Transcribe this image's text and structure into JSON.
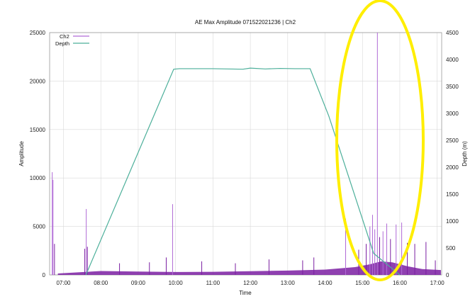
{
  "chart_data": {
    "type": "line",
    "title": "AE Max Amplitude 071522021236 | Ch2",
    "xlabel": "Time",
    "ylabel": "Amplitude",
    "y2label": "Depth (m)",
    "x_ticks": [
      "07:00",
      "08:00",
      "09:00",
      "10:00",
      "11:00",
      "12:00",
      "13:00",
      "14:00",
      "15:00",
      "16:00",
      "17:00"
    ],
    "xlim_hours": [
      6.63,
      17.12
    ],
    "ylim": [
      0,
      25000
    ],
    "y_ticks": [
      "0",
      "5000",
      "10000",
      "15000",
      "20000",
      "25000"
    ],
    "y2lim": [
      0,
      4500
    ],
    "y2_ticks": [
      "0",
      "500",
      "1000",
      "1500",
      "2000",
      "2500",
      "3000",
      "3500",
      "4000",
      "4500"
    ],
    "grid": true,
    "legend": {
      "placement": "top-left",
      "entries": [
        "Ch2",
        "Depth"
      ]
    },
    "colors": {
      "ch2": "#7b1fa2",
      "ch2_light": "#b06ad6",
      "depth": "#4caf9a",
      "highlight": "#ffee00",
      "grid": "#d9d9d9"
    },
    "series": [
      {
        "name": "Depth",
        "axis": "right",
        "x_hours": [
          7.6,
          9.95,
          10.1,
          11.0,
          11.8,
          12.0,
          12.4,
          12.8,
          13.2,
          13.6,
          14.1,
          15.3,
          16.0
        ],
        "y": [
          0,
          3820,
          3830,
          3830,
          3820,
          3840,
          3825,
          3835,
          3830,
          3830,
          2950,
          400,
          0
        ]
      },
      {
        "name": "Ch2",
        "axis": "left",
        "baseline_x_hours": [
          6.85,
          7.55,
          8.0,
          9.0,
          10.0,
          11.0,
          12.0,
          13.0,
          14.0,
          14.8,
          15.2,
          15.5,
          15.8,
          16.2,
          16.6,
          17.1
        ],
        "baseline_y": [
          150,
          300,
          400,
          350,
          300,
          320,
          380,
          450,
          550,
          800,
          1100,
          1400,
          1300,
          900,
          600,
          500
        ],
        "spikes": [
          {
            "t": 6.7,
            "v": 10600
          },
          {
            "t": 6.72,
            "v": 9800
          },
          {
            "t": 6.76,
            "v": 3200
          },
          {
            "t": 7.57,
            "v": 2700
          },
          {
            "t": 7.61,
            "v": 6800
          },
          {
            "t": 7.64,
            "v": 2900
          },
          {
            "t": 8.5,
            "v": 1200
          },
          {
            "t": 9.3,
            "v": 1300
          },
          {
            "t": 9.75,
            "v": 1800
          },
          {
            "t": 9.92,
            "v": 7300
          },
          {
            "t": 10.7,
            "v": 1400
          },
          {
            "t": 11.6,
            "v": 1200
          },
          {
            "t": 12.5,
            "v": 1600
          },
          {
            "t": 13.4,
            "v": 1500
          },
          {
            "t": 13.7,
            "v": 1800
          },
          {
            "t": 14.55,
            "v": 5800
          },
          {
            "t": 14.9,
            "v": 2600
          },
          {
            "t": 15.1,
            "v": 3200
          },
          {
            "t": 15.2,
            "v": 5000
          },
          {
            "t": 15.27,
            "v": 6200
          },
          {
            "t": 15.33,
            "v": 4700
          },
          {
            "t": 15.4,
            "v": 25000
          },
          {
            "t": 15.46,
            "v": 3900
          },
          {
            "t": 15.55,
            "v": 4500
          },
          {
            "t": 15.65,
            "v": 5300
          },
          {
            "t": 15.75,
            "v": 3700
          },
          {
            "t": 15.9,
            "v": 5200
          },
          {
            "t": 16.05,
            "v": 5400
          },
          {
            "t": 16.2,
            "v": 3300
          },
          {
            "t": 16.4,
            "v": 3200
          },
          {
            "t": 16.7,
            "v": 3400
          },
          {
            "t": 16.95,
            "v": 1500
          }
        ]
      }
    ]
  }
}
